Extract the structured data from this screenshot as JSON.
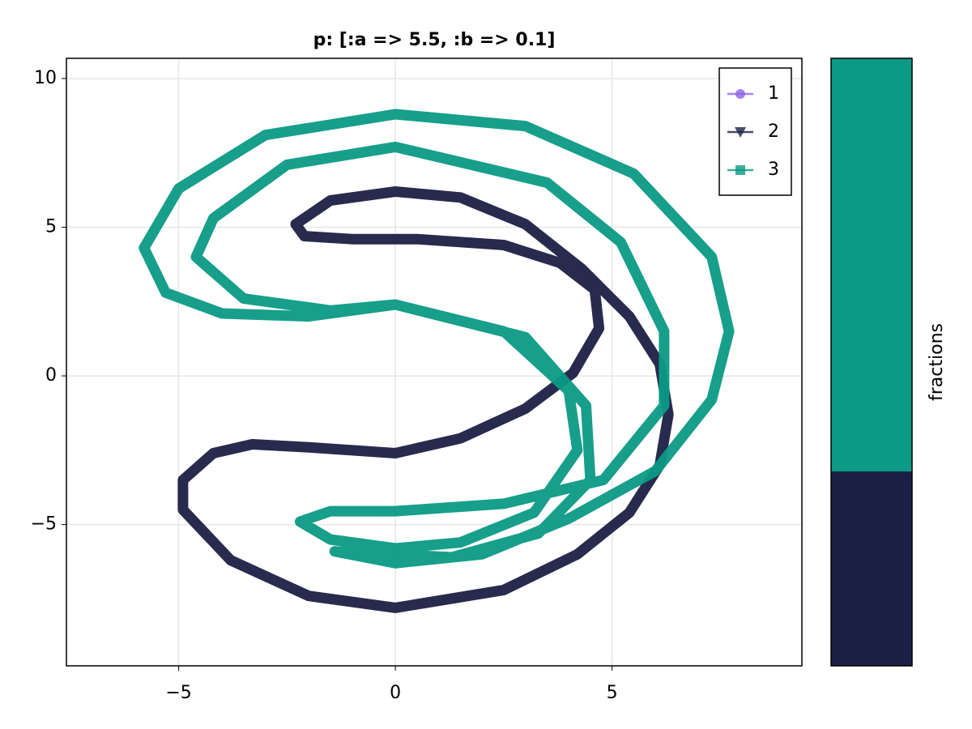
{
  "chart_data": [
    {
      "type": "line",
      "title": "p: [:a => 5.5, :b => 0.1]",
      "xlim": [
        -7.59,
        9.38
      ],
      "ylim": [
        -9.75,
        10.68
      ],
      "xticks": [
        {
          "value": -5,
          "label": "−5"
        },
        0,
        5
      ],
      "yticks": [
        {
          "value": -5,
          "label": "−5"
        },
        0,
        5,
        10
      ],
      "grid": true,
      "legend": "top-right",
      "series": [
        {
          "name": "1",
          "color": "#8e63e6",
          "marker": "circle",
          "x": [],
          "y": []
        },
        {
          "name": "2",
          "color": "#1c1f45",
          "marker": "triangle-down",
          "x": [
            -2.3,
            -1.5,
            0,
            1.5,
            3,
            4.3,
            5.4,
            6.1,
            6.3,
            6.1,
            5.4,
            4.2,
            2.5,
            0,
            -2,
            -3.8,
            -4.9,
            -4.9,
            -4.2,
            -3.3,
            -2,
            0,
            1.5,
            3,
            4.1,
            4.7,
            4.6,
            3.8,
            2.5,
            0.5,
            -1,
            -2.1,
            -2.3
          ],
          "y": [
            5.1,
            5.9,
            6.2,
            6.0,
            5.1,
            3.6,
            2.0,
            0.4,
            -1.3,
            -3.0,
            -4.6,
            -6.0,
            -7.2,
            -7.8,
            -7.4,
            -6.2,
            -4.5,
            -3.5,
            -2.6,
            -2.3,
            -2.4,
            -2.6,
            -2.1,
            -1.1,
            0.1,
            1.6,
            2.9,
            3.8,
            4.4,
            4.6,
            4.6,
            4.7,
            5.1
          ]
        },
        {
          "name": "3",
          "color": "#0b9a85",
          "marker": "square",
          "x": [
            -1.4,
            0,
            2,
            4,
            6,
            7.3,
            7.7,
            7.3,
            5.5,
            3,
            0,
            -3,
            -5,
            -5.8,
            -5.3,
            -4,
            -2,
            0,
            2.5,
            4,
            4.2,
            3.2,
            1.5,
            0,
            -1.5,
            -2.2,
            -1.5,
            0,
            2.5,
            4.8,
            6.2,
            6.2,
            5.2,
            3.5,
            0,
            -2.5,
            -4.2,
            -4.6,
            -3.5,
            -1.5,
            0,
            3,
            4.4,
            4.5,
            3.3,
            1.3,
            -1.4
          ],
          "y": [
            -5.9,
            -6.3,
            -6.0,
            -4.8,
            -3.2,
            -0.8,
            1.5,
            4.0,
            6.8,
            8.4,
            8.8,
            8.1,
            6.3,
            4.3,
            2.8,
            2.1,
            2.0,
            2.4,
            1.5,
            -0.5,
            -2.5,
            -4.6,
            -5.6,
            -5.8,
            -5.5,
            -4.9,
            -4.55,
            -4.55,
            -4.3,
            -3.5,
            -1.0,
            1.5,
            4.5,
            6.5,
            7.7,
            7.1,
            5.3,
            4.0,
            2.6,
            2.2,
            2.4,
            1.3,
            -1.0,
            -3.5,
            -5.3,
            -6.1,
            -5.9
          ]
        }
      ]
    },
    {
      "type": "bar",
      "stacked": true,
      "ylabel": "fractions",
      "ylim": [
        0,
        1
      ],
      "categories": [
        null
      ],
      "series": [
        {
          "name": "1",
          "color": "#8e63e6",
          "values": [
            0
          ]
        },
        {
          "name": "2",
          "color": "#1c1f45",
          "values": [
            0.32
          ]
        },
        {
          "name": "3",
          "color": "#0b9a85",
          "values": [
            0.68
          ]
        }
      ]
    }
  ]
}
